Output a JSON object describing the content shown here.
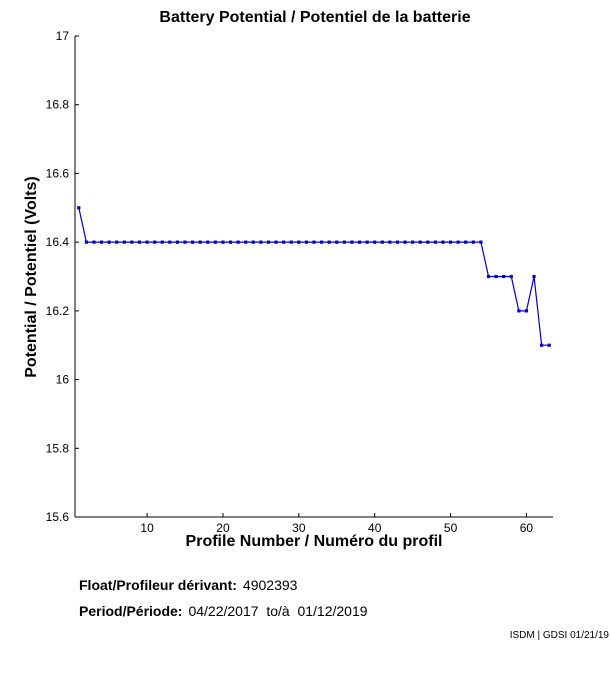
{
  "chart_data": {
    "type": "line",
    "title": "Battery Potential / Potentiel de la batterie",
    "xlabel": "Profile Number / Numéro du profil",
    "ylabel": "Potential / Potentiel (Volts)",
    "xlim": [
      0.5,
      63.5
    ],
    "ylim": [
      15.6,
      17
    ],
    "xticks": [
      10,
      20,
      30,
      40,
      50,
      60
    ],
    "yticks": [
      15.6,
      15.8,
      16,
      16.2,
      16.4,
      16.6,
      16.8,
      17
    ],
    "grid": false,
    "series_color": "#0000cc",
    "x": [
      1,
      2,
      3,
      4,
      5,
      6,
      7,
      8,
      9,
      10,
      11,
      12,
      13,
      14,
      15,
      16,
      17,
      18,
      19,
      20,
      21,
      22,
      23,
      24,
      25,
      26,
      27,
      28,
      29,
      30,
      31,
      32,
      33,
      34,
      35,
      36,
      37,
      38,
      39,
      40,
      41,
      42,
      43,
      44,
      45,
      46,
      47,
      48,
      49,
      50,
      51,
      52,
      53,
      54,
      55,
      56,
      57,
      58,
      59,
      60,
      61,
      62,
      63
    ],
    "values": [
      16.5,
      16.4,
      16.4,
      16.4,
      16.4,
      16.4,
      16.4,
      16.4,
      16.4,
      16.4,
      16.4,
      16.4,
      16.4,
      16.4,
      16.4,
      16.4,
      16.4,
      16.4,
      16.4,
      16.4,
      16.4,
      16.4,
      16.4,
      16.4,
      16.4,
      16.4,
      16.4,
      16.4,
      16.4,
      16.4,
      16.4,
      16.4,
      16.4,
      16.4,
      16.4,
      16.4,
      16.4,
      16.4,
      16.4,
      16.4,
      16.4,
      16.4,
      16.4,
      16.4,
      16.4,
      16.4,
      16.4,
      16.4,
      16.4,
      16.4,
      16.4,
      16.4,
      16.4,
      16.4,
      16.3,
      16.3,
      16.3,
      16.3,
      16.2,
      16.2,
      16.3,
      16.1,
      16.1
    ]
  },
  "info": {
    "float_label": "Float/Profileur dérivant:",
    "float_value": "4902393",
    "period_label": "Period/Période:",
    "period_value": "04/22/2017  to/à  01/12/2019"
  },
  "credit": "ISDM | GDSI 01/21/19"
}
